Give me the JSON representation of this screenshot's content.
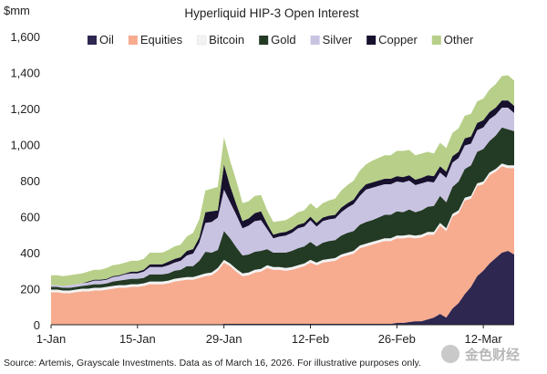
{
  "chart_data": {
    "type": "area",
    "stacked": true,
    "title": "Hyperliquid HIP-3 Open Interest",
    "unit": "$mm",
    "source": "Source: Artemis, Grayscale Investments. Data as of March 16, 2026. For illustrative purposes only.",
    "watermark": "金色财经",
    "ylim": [
      0,
      1600
    ],
    "yticks": [
      0,
      200,
      400,
      600,
      800,
      1000,
      1200,
      1400,
      1600
    ],
    "ytick_labels": [
      "0",
      "200",
      "400",
      "600",
      "800",
      "1,000",
      "1,200",
      "1,400",
      "1,600"
    ],
    "xticks": [
      {
        "day": 0,
        "label": "1-Jan"
      },
      {
        "day": 14,
        "label": "15-Jan"
      },
      {
        "day": 28,
        "label": "29-Jan"
      },
      {
        "day": 42,
        "label": "12-Feb"
      },
      {
        "day": 56,
        "label": "26-Feb"
      },
      {
        "day": 70,
        "label": "12-Mar"
      }
    ],
    "x": [
      0,
      1,
      2,
      3,
      4,
      5,
      6,
      7,
      8,
      9,
      10,
      11,
      12,
      13,
      14,
      15,
      16,
      17,
      18,
      19,
      20,
      21,
      22,
      23,
      24,
      25,
      26,
      27,
      28,
      29,
      30,
      31,
      32,
      33,
      34,
      35,
      36,
      37,
      38,
      39,
      40,
      41,
      42,
      43,
      44,
      45,
      46,
      47,
      48,
      49,
      50,
      51,
      52,
      53,
      54,
      55,
      56,
      57,
      58,
      59,
      60,
      61,
      62,
      63,
      64,
      65,
      66,
      67,
      68,
      69,
      70,
      71,
      72,
      73,
      74,
      75
    ],
    "grid": false,
    "legend_position": "top",
    "series": [
      {
        "name": "Oil",
        "color": "#2e2750",
        "values": [
          0,
          0,
          0,
          0,
          0,
          0,
          0,
          0,
          0,
          0,
          0,
          0,
          0,
          0,
          0,
          0,
          0,
          0,
          0,
          0,
          0,
          0,
          0,
          0,
          0,
          0,
          0,
          0,
          5,
          5,
          5,
          5,
          5,
          5,
          5,
          5,
          5,
          5,
          5,
          5,
          5,
          5,
          5,
          5,
          5,
          5,
          5,
          5,
          5,
          5,
          5,
          5,
          5,
          5,
          5,
          5,
          10,
          10,
          15,
          20,
          20,
          30,
          40,
          60,
          40,
          90,
          120,
          170,
          210,
          270,
          300,
          340,
          370,
          400,
          410,
          390
        ]
      },
      {
        "name": "Equities",
        "color": "#f7ab8f",
        "values": [
          180,
          180,
          175,
          175,
          180,
          185,
          185,
          190,
          190,
          195,
          200,
          205,
          205,
          210,
          210,
          215,
          225,
          225,
          225,
          230,
          240,
          245,
          250,
          250,
          260,
          270,
          275,
          300,
          340,
          320,
          290,
          265,
          270,
          285,
          290,
          310,
          300,
          300,
          295,
          300,
          310,
          320,
          340,
          325,
          340,
          345,
          350,
          370,
          380,
          390,
          420,
          430,
          440,
          450,
          460,
          460,
          470,
          470,
          470,
          460,
          465,
          470,
          460,
          490,
          480,
          510,
          500,
          520,
          490,
          500,
          480,
          490,
          480,
          480,
          460,
          480
        ]
      },
      {
        "name": "Bitcoin",
        "color": "#f2f2f2",
        "values": [
          15,
          15,
          15,
          15,
          15,
          15,
          15,
          15,
          15,
          15,
          15,
          15,
          15,
          15,
          15,
          15,
          15,
          15,
          15,
          15,
          15,
          15,
          15,
          15,
          15,
          15,
          15,
          15,
          15,
          15,
          15,
          15,
          15,
          15,
          15,
          15,
          15,
          15,
          15,
          15,
          15,
          15,
          15,
          15,
          15,
          15,
          15,
          15,
          15,
          15,
          15,
          15,
          15,
          15,
          15,
          15,
          15,
          15,
          15,
          15,
          15,
          15,
          15,
          15,
          15,
          15,
          15,
          15,
          15,
          15,
          15,
          15,
          15,
          15,
          15,
          15
        ]
      },
      {
        "name": "Gold",
        "color": "#233a24",
        "values": [
          15,
          15,
          15,
          15,
          15,
          15,
          20,
          20,
          20,
          20,
          25,
          25,
          30,
          30,
          30,
          30,
          40,
          40,
          40,
          40,
          45,
          45,
          60,
          60,
          80,
          120,
          110,
          100,
          160,
          140,
          120,
          100,
          100,
          100,
          100,
          90,
          80,
          80,
          85,
          90,
          95,
          95,
          100,
          90,
          95,
          100,
          100,
          105,
          110,
          110,
          115,
          120,
          120,
          125,
          130,
          130,
          135,
          130,
          140,
          130,
          135,
          140,
          145,
          150,
          145,
          150,
          160,
          160,
          170,
          175,
          180,
          175,
          185,
          200,
          200,
          190
        ]
      },
      {
        "name": "Silver",
        "color": "#c9c3e2",
        "values": [
          10,
          10,
          10,
          15,
          15,
          15,
          15,
          20,
          20,
          20,
          25,
          25,
          30,
          30,
          30,
          35,
          40,
          40,
          40,
          45,
          45,
          50,
          60,
          70,
          100,
          160,
          170,
          180,
          230,
          200,
          180,
          150,
          160,
          170,
          170,
          110,
          80,
          90,
          95,
          100,
          110,
          110,
          120,
          110,
          120,
          120,
          120,
          130,
          140,
          150,
          160,
          180,
          180,
          175,
          170,
          170,
          165,
          165,
          160,
          150,
          150,
          140,
          130,
          130,
          135,
          135,
          130,
          130,
          120,
          120,
          120,
          120,
          115,
          110,
          120,
          100
        ]
      },
      {
        "name": "Copper",
        "color": "#17112e",
        "values": [
          0,
          0,
          0,
          0,
          0,
          0,
          5,
          5,
          5,
          5,
          5,
          5,
          5,
          10,
          10,
          10,
          15,
          15,
          15,
          20,
          20,
          20,
          25,
          25,
          30,
          60,
          60,
          40,
          140,
          90,
          60,
          40,
          40,
          45,
          50,
          30,
          20,
          20,
          20,
          20,
          20,
          20,
          20,
          20,
          20,
          20,
          20,
          25,
          25,
          25,
          30,
          30,
          30,
          30,
          30,
          30,
          30,
          30,
          30,
          30,
          30,
          35,
          35,
          35,
          35,
          35,
          35,
          40,
          40,
          40,
          40,
          40,
          40,
          40,
          40,
          40
        ]
      },
      {
        "name": "Other",
        "color": "#b7cf88",
        "values": [
          55,
          55,
          55,
          55,
          55,
          55,
          55,
          55,
          55,
          60,
          60,
          60,
          60,
          60,
          60,
          60,
          65,
          65,
          65,
          65,
          70,
          70,
          80,
          90,
          100,
          120,
          125,
          130,
          150,
          140,
          130,
          100,
          95,
          95,
          90,
          75,
          70,
          65,
          65,
          70,
          70,
          70,
          75,
          80,
          80,
          85,
          90,
          95,
          100,
          105,
          110,
          110,
          120,
          125,
          130,
          130,
          140,
          145,
          140,
          135,
          135,
          130,
          125,
          130,
          130,
          130,
          130,
          125,
          125,
          120,
          120,
          125,
          130,
          135,
          140,
          140
        ]
      }
    ]
  }
}
